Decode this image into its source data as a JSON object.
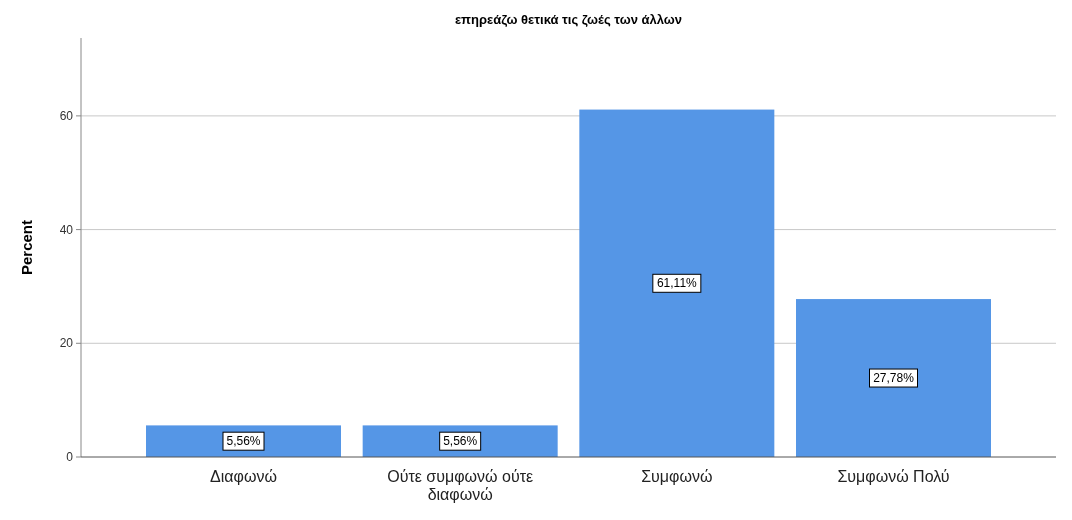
{
  "chart_data": {
    "type": "bar",
    "title": "επηρεάζω θετικά τις ζωές των άλλων",
    "ylabel": "Percent",
    "categories": [
      "Διαφωνώ",
      "Ούτε συμφωνώ ούτε διαφωνώ",
      "Συμφωνώ",
      "Συμφωνώ Πολύ"
    ],
    "values": [
      5.56,
      5.56,
      61.11,
      27.78
    ],
    "color": "#5596e6",
    "value_labels": [
      "5,56%",
      "5,56%",
      "61,11%",
      "27,78%"
    ],
    "ylim": [
      0,
      73.7
    ],
    "yticks": [
      0,
      20,
      40,
      60
    ],
    "grid": "y"
  }
}
